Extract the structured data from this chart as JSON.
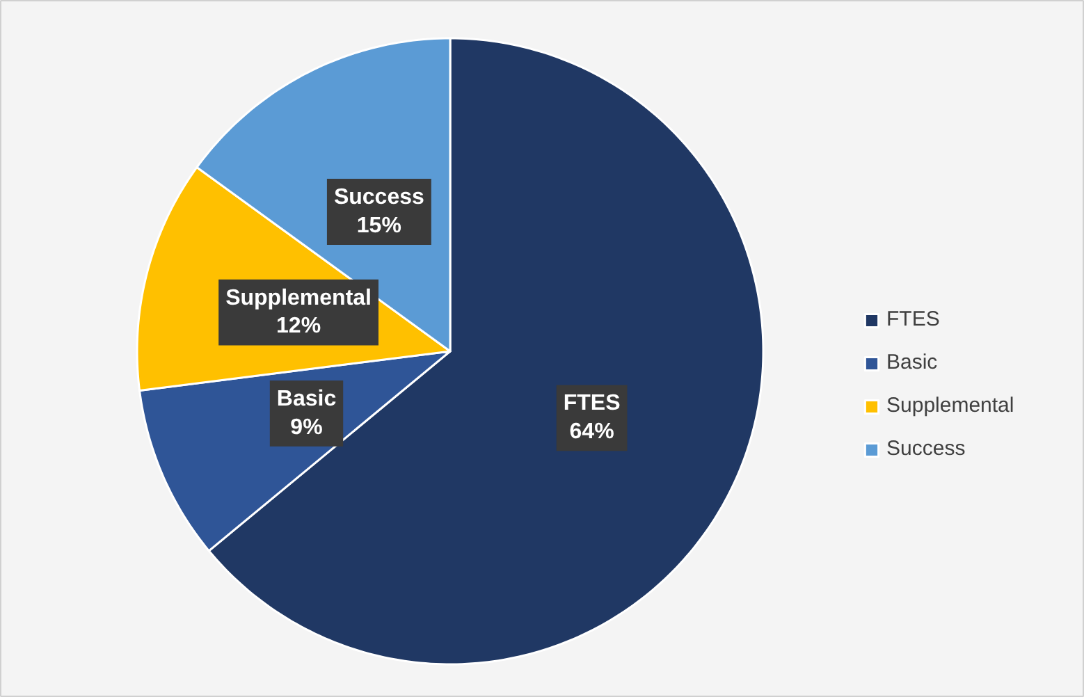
{
  "chart_data": {
    "type": "pie",
    "categories": [
      "FTES",
      "Basic",
      "Supplemental",
      "Success"
    ],
    "values": [
      64,
      9,
      12,
      15
    ],
    "colors": [
      "#203864",
      "#2f5597",
      "#ffc000",
      "#5b9bd5"
    ],
    "value_labels": [
      "64%",
      "9%",
      "12%",
      "15%"
    ],
    "legend": "right"
  }
}
